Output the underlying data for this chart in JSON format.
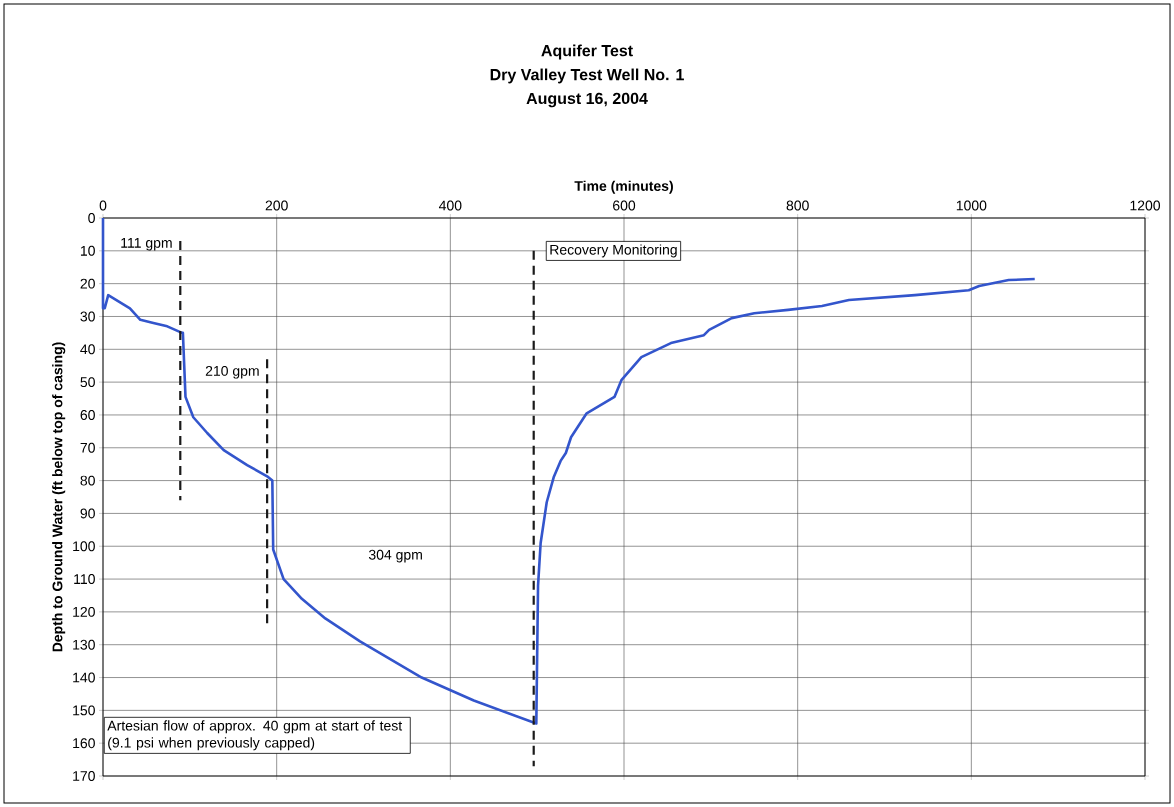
{
  "chart_data": {
    "type": "line",
    "title": "Aquifer Test",
    "subtitle": "Dry Valley Test Well No. 1",
    "xlabel": "Time (minutes)",
    "ylabel": "Depth to Ground Water (ft below top of casing)",
    "xlim": [
      0,
      1200
    ],
    "xticks": [
      0,
      200,
      400,
      600,
      800,
      1000,
      1200
    ],
    "ylim": [
      170,
      0
    ],
    "yticks": [
      0,
      10,
      20,
      30,
      40,
      50,
      60,
      70,
      80,
      90,
      100,
      110,
      120,
      130,
      140,
      150,
      160,
      170
    ],
    "grid": true,
    "series": [
      {
        "color": "#3355cc",
        "x": [
          0,
          0,
          2,
          6,
          31,
          43,
          58,
          74,
          91,
          92,
          95,
          104,
          120,
          139,
          166,
          189,
          195,
          196,
          208,
          229,
          256,
          296,
          367,
          427,
          499,
          501,
          504,
          511,
          519,
          527,
          533,
          539,
          557,
          589,
          597,
          620,
          654,
          692,
          698,
          724,
          750,
          789,
          828,
          859,
          935,
          997,
          1009,
          1043,
          1073
        ],
        "values": [
          0,
          27.5,
          27.5,
          23.5,
          27.5,
          31,
          32,
          33,
          35,
          35,
          54.5,
          60.7,
          65.5,
          70.7,
          75.3,
          78.7,
          80,
          101,
          110,
          116,
          122,
          129,
          140,
          147,
          154,
          112,
          99,
          86.6,
          79,
          74,
          71.6,
          66.8,
          59.5,
          54.5,
          49.4,
          42.4,
          38.1,
          35.7,
          34.1,
          30.5,
          29,
          28,
          26.8,
          25,
          23.5,
          22,
          20.7,
          18.9,
          18.6
        ]
      },
      {
        "type": "line",
        "color": "#1a1a1a",
        "line_style": "dashed",
        "x": [
          89,
          89
        ],
        "values": [
          7,
          86
        ]
      },
      {
        "type": "line",
        "color": "#1a1a1a",
        "line_style": "dashed",
        "x": [
          189,
          189
        ],
        "values": [
          43,
          124
        ]
      },
      {
        "type": "line",
        "color": "#1a1a1a",
        "line_style": "dashed",
        "x": [
          496,
          496
        ],
        "values": [
          10,
          167
        ]
      }
    ],
    "annotations": [
      "August 16, 2004",
      "111 gpm",
      "210 gpm",
      "304 gpm",
      "Recovery Monitoring",
      "Artesian flow of approx.  40 gpm at start of test  (9.1 psi when previously capped)"
    ]
  }
}
